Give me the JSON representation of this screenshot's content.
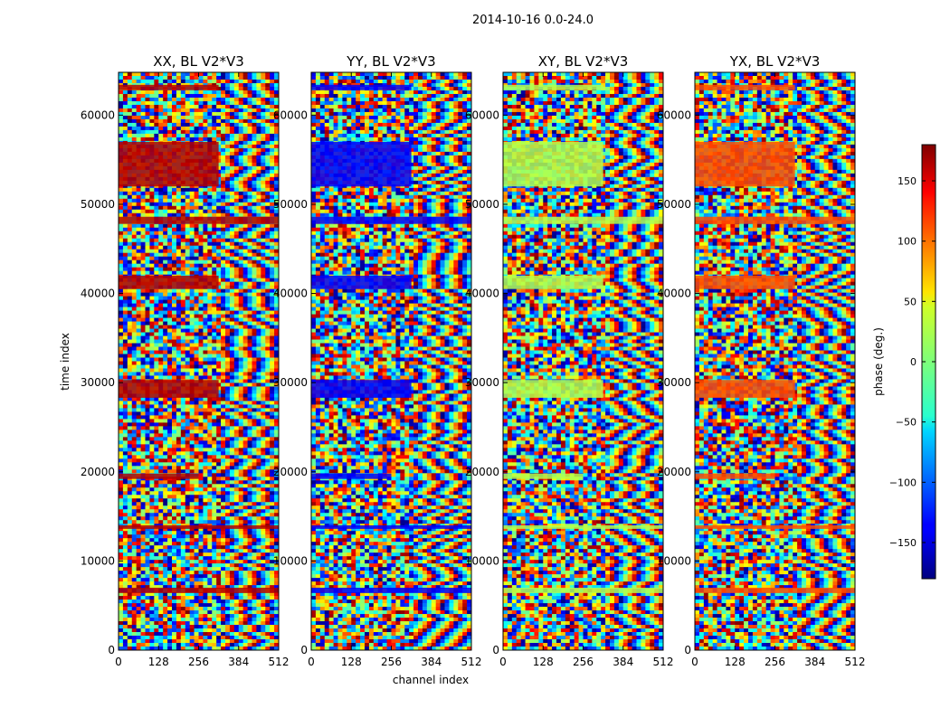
{
  "suptitle": "2014-10-16 0.0-24.0",
  "chart_data": {
    "type": "heatmap",
    "panels": [
      {
        "title": "XX, BL V2*V3",
        "dominant_band": "red"
      },
      {
        "title": "YY, BL V2*V3",
        "dominant_band": "blue"
      },
      {
        "title": "XY, BL V2*V3",
        "dominant_band": "green"
      },
      {
        "title": "YX, BL V2*V3",
        "dominant_band": "orange"
      }
    ],
    "xlabel": "channel index",
    "ylabel": "time index",
    "xlim": [
      0,
      512
    ],
    "ylim": [
      0,
      64800
    ],
    "xticks": [
      0,
      128,
      256,
      384,
      512
    ],
    "xtick_labels": [
      "0",
      "128",
      "256",
      "384",
      "512"
    ],
    "yticks": [
      0,
      10000,
      20000,
      30000,
      40000,
      50000,
      60000
    ],
    "ytick_labels": [
      "0",
      "10000",
      "20000",
      "30000",
      "40000",
      "50000",
      "60000"
    ],
    "colorbar": {
      "label": "phase (deg.)",
      "range": [
        -180,
        180
      ],
      "ticks": [
        -150,
        -100,
        -50,
        0,
        50,
        100,
        150
      ],
      "tick_labels": [
        "−150",
        "−100",
        "−50",
        "0",
        "50",
        "100",
        "150"
      ],
      "colormap": "jet"
    },
    "coherent_bands": [
      {
        "y_start": 52000,
        "y_end": 57000,
        "x_end": 320
      },
      {
        "y_start": 40500,
        "y_end": 42000,
        "x_end": 320
      },
      {
        "y_start": 28300,
        "y_end": 30300,
        "x_end": 320
      },
      {
        "y_start": 19200,
        "y_end": 19800,
        "x_end": 256
      },
      {
        "y_start": 6400,
        "y_end": 7000,
        "x_end": 512
      },
      {
        "y_start": 13600,
        "y_end": 14000,
        "x_end": 512
      },
      {
        "y_start": 47800,
        "y_end": 48600,
        "x_end": 512
      },
      {
        "y_start": 62800,
        "y_end": 63400,
        "x_end": 320
      }
    ]
  }
}
